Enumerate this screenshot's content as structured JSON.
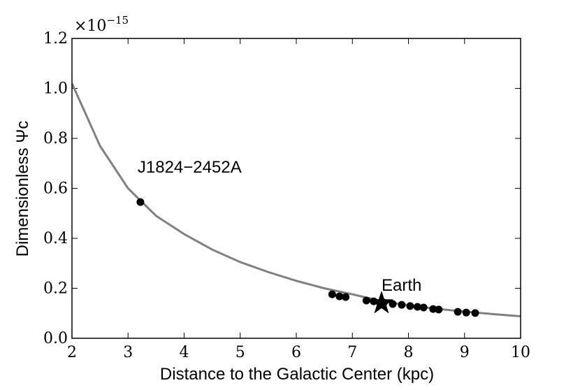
{
  "chart_data": {
    "type": "line",
    "xlabel": "Distance to the Galactic Center (kpc)",
    "ylabel": "Dimensionless Ψc",
    "y_multiplier": {
      "base": "×10",
      "exponent": "−15"
    },
    "xlim": [
      2,
      10
    ],
    "ylim": [
      0,
      1.2
    ],
    "xticks": [
      2,
      3,
      4,
      5,
      6,
      7,
      8,
      9,
      10
    ],
    "yticks": [
      {
        "value": 0,
        "label": "0.0"
      },
      0.2,
      0.4,
      0.6,
      0.8,
      {
        "value": 1,
        "label": "1.0"
      },
      1.2
    ],
    "series": [
      {
        "type": "line",
        "color": "#808080",
        "x": [
          2,
          2.5,
          3,
          3.5,
          4,
          4.5,
          5,
          5.5,
          6,
          6.5,
          7,
          7.5,
          8,
          8.5,
          9,
          9.5,
          10
        ],
        "values": [
          1.02,
          0.77,
          0.6,
          0.49,
          0.417,
          0.355,
          0.305,
          0.265,
          0.23,
          0.2,
          0.176,
          0.15,
          0.132,
          0.118,
          0.107,
          0.097,
          0.088
        ]
      },
      {
        "type": "scatter",
        "color": "#000000",
        "x": [
          3.22,
          6.64,
          6.77,
          6.88,
          7.25,
          7.38,
          7.56,
          7.72,
          7.88,
          8.03,
          8.16,
          8.27,
          8.44,
          8.54,
          8.88,
          9.03,
          9.19
        ],
        "values": [
          0.545,
          0.176,
          0.168,
          0.165,
          0.151,
          0.148,
          0.143,
          0.137,
          0.134,
          0.129,
          0.126,
          0.123,
          0.117,
          0.115,
          0.106,
          0.103,
          0.101
        ]
      },
      {
        "type": "star",
        "color": "#000000",
        "x": [
          7.52
        ],
        "values": [
          0.14
        ]
      }
    ],
    "annotations": [
      {
        "text": "J1824−2452A",
        "x": 3.22,
        "y": 0.545
      },
      {
        "text": "Earth",
        "x": 7.52,
        "y": 0.14
      }
    ]
  }
}
